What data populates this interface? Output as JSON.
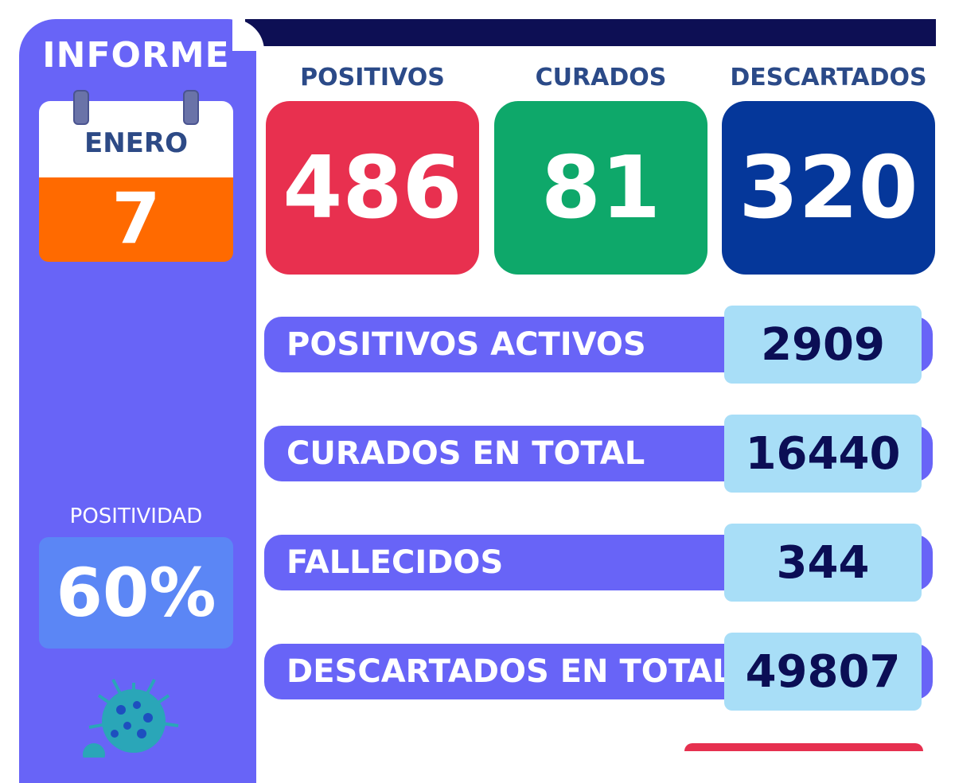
{
  "sidebar": {
    "title": "INFORME",
    "calendar": {
      "month": "ENERO",
      "day": "7"
    },
    "positividad": {
      "label": "POSITIVIDAD",
      "value": "60%"
    }
  },
  "cards": [
    {
      "label": "POSITIVOS",
      "value": "486",
      "color": "#e8304f"
    },
    {
      "label": "CURADOS",
      "value": "81",
      "color": "#0ea86a"
    },
    {
      "label": "DESCARTADOS",
      "value": "320",
      "color": "#05379a"
    }
  ],
  "stats": [
    {
      "label": "POSITIVOS ACTIVOS",
      "value": "2909"
    },
    {
      "label": "CURADOS EN TOTAL",
      "value": "16440"
    },
    {
      "label": "FALLECIDOS",
      "value": "344"
    },
    {
      "label": "DESCARTADOS EN TOTAL",
      "value": "49807"
    }
  ],
  "colors": {
    "sidebar": "#6864f7",
    "topbar": "#0d0f54",
    "calendar_day_bg": "#ff6a00",
    "positividad_bg": "#5b86f5",
    "stat_value_bg": "#a8def7"
  },
  "icons": {
    "decoration": "virus-icon"
  }
}
